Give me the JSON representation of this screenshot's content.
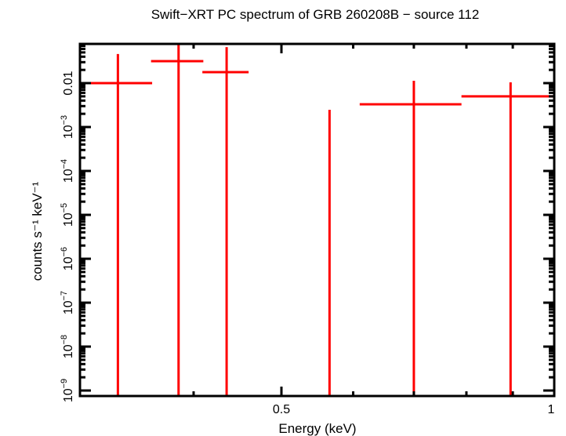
{
  "chart_data": {
    "type": "scatter",
    "title": "Swift−XRT PC spectrum of GRB 260208B − source 112",
    "xlabel": "Energy (keV)",
    "ylabel": "counts s⁻¹ keV⁻¹",
    "xscale": "log",
    "yscale": "log",
    "xlim": [
      0.3,
      1.0
    ],
    "ylim": [
      7e-10,
      0.078
    ],
    "grid": false,
    "legend": null,
    "x_ticks": [
      {
        "value": 0.5,
        "label": "0.5"
      },
      {
        "value": 1.0,
        "label": "1"
      }
    ],
    "x_minor_ticks": [
      0.4,
      0.6,
      0.7,
      0.8,
      0.9
    ],
    "y_ticks": [
      {
        "value": 0.01,
        "base": "0.01",
        "exp": ""
      },
      {
        "value": 0.001,
        "base": "10",
        "exp": "−3"
      },
      {
        "value": 0.0001,
        "base": "10",
        "exp": "−4"
      },
      {
        "value": 1e-05,
        "base": "10",
        "exp": "−5"
      },
      {
        "value": 1e-06,
        "base": "10",
        "exp": "−6"
      },
      {
        "value": 1e-07,
        "base": "10",
        "exp": "−7"
      },
      {
        "value": 1e-08,
        "base": "10",
        "exp": "−8"
      },
      {
        "value": 1e-09,
        "base": "10",
        "exp": "−9"
      }
    ],
    "series": [
      {
        "name": "PC spectrum",
        "color": "#ff0000",
        "points": [
          {
            "x": 0.33,
            "xlo": 0.3,
            "xhi": 0.36,
            "y": 0.01,
            "ylo": 7e-10,
            "yhi": 0.046
          },
          {
            "x": 0.385,
            "xlo": 0.359,
            "xhi": 0.41,
            "y": 0.0316,
            "ylo": 7e-10,
            "yhi": 0.078
          },
          {
            "x": 0.435,
            "xlo": 0.409,
            "xhi": 0.46,
            "y": 0.0178,
            "ylo": 7e-10,
            "yhi": 0.066
          },
          {
            "x": 0.565,
            "xlo": 0.565,
            "xhi": 0.565,
            "y": null,
            "ylo": 7e-10,
            "yhi": 0.00247
          },
          {
            "x": 0.7,
            "xlo": 0.61,
            "xhi": 0.79,
            "y": 0.0033,
            "ylo": 7e-10,
            "yhi": 0.0113
          },
          {
            "x": 0.895,
            "xlo": 0.79,
            "xhi": 1.0,
            "y": 0.005,
            "ylo": 7e-10,
            "yhi": 0.0104
          }
        ]
      }
    ]
  },
  "colors": {
    "data": "#ff0000",
    "axes": "#000000",
    "background": "#ffffff"
  }
}
